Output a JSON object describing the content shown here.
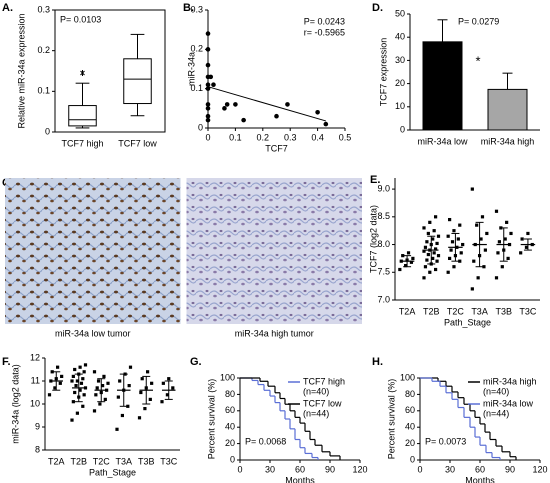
{
  "chart_data": [
    {
      "type": "box",
      "label": "A.",
      "ylabel": "Relative miR-34a expression",
      "categories": [
        "TCF7 high",
        "TCF7 low"
      ],
      "boxes": [
        {
          "min": 0.01,
          "q1": 0.015,
          "median": 0.03,
          "q3": 0.065,
          "max": 0.12,
          "outliers": [
            0.145
          ]
        },
        {
          "min": 0.04,
          "q1": 0.07,
          "median": 0.13,
          "q3": 0.18,
          "max": 0.24,
          "outliers": []
        }
      ],
      "ylim": [
        0,
        0.3
      ],
      "yticks": [
        0,
        0.1,
        0.2,
        0.3
      ],
      "color": "#ffffff",
      "annotations": [
        "P= 0.0103"
      ]
    },
    {
      "type": "scatter",
      "label": "B.",
      "ylabel": "miR-34a",
      "xlabel": "TCF7",
      "x": [
        0,
        0,
        0,
        0,
        0,
        0,
        0,
        0,
        0,
        0,
        0.01,
        0.02,
        0.06,
        0.07,
        0.1,
        0.13,
        0.25,
        0.29,
        0.4,
        0.43
      ],
      "values": [
        0.24,
        0.2,
        0.16,
        0.13,
        0.11,
        0.1,
        0.06,
        0.05,
        0.03,
        0.02,
        0.13,
        0.11,
        0.05,
        0.06,
        0.06,
        0.02,
        0.03,
        0.06,
        0.04,
        0.01
      ],
      "trend": {
        "x": [
          0,
          0.43
        ],
        "values": [
          0.105,
          0.018
        ]
      },
      "xlim": [
        0,
        0.5
      ],
      "xticks": [
        0,
        0.1,
        0.2,
        0.3,
        0.4,
        0.5
      ],
      "ylim": [
        0,
        0.3
      ],
      "yticks": [
        0,
        0.1,
        0.2,
        0.3
      ],
      "color": "#000000",
      "annotations": [
        "P= 0.0243",
        "r= -0.5965"
      ]
    },
    {
      "type": "bar",
      "label": "D.",
      "ylabel": "TCF7 expression",
      "categories": [
        "miR-34a low",
        "miR-34a high"
      ],
      "values": [
        38,
        17.5
      ],
      "errors": [
        9.5,
        7
      ],
      "colors": [
        "#000000",
        "#a6a6a6"
      ],
      "ylim": [
        0,
        50
      ],
      "yticks": [
        0,
        10,
        20,
        30,
        40,
        50
      ],
      "annotations": [
        "P= 0.0279",
        "*"
      ]
    },
    {
      "type": "image",
      "label": "C.",
      "captions": [
        "miR-34a low tumor",
        "miR-34a high tumor"
      ]
    },
    {
      "type": "dot",
      "label": "E.",
      "ylabel": "TCF7 (log2 data)",
      "xlabel": "Path_Stage",
      "categories": [
        "T2A",
        "T2B",
        "T2C",
        "T3A",
        "T3B",
        "T3C"
      ],
      "groups": [
        {
          "points": [
            7.55,
            7.62,
            7.68,
            7.7,
            7.72,
            7.75,
            7.8,
            7.85
          ],
          "mean": 7.7,
          "sd": 0.1
        },
        {
          "points": [
            7.4,
            7.5,
            7.55,
            7.6,
            7.65,
            7.7,
            7.72,
            7.75,
            7.8,
            7.82,
            7.85,
            7.88,
            7.9,
            7.92,
            7.95,
            8.0,
            8.02,
            8.05,
            8.1,
            8.15,
            8.2,
            8.25,
            8.3,
            8.4,
            8.5
          ],
          "mean": 7.9,
          "sd": 0.25
        },
        {
          "points": [
            7.5,
            7.6,
            7.7,
            7.75,
            7.8,
            7.85,
            7.9,
            7.95,
            8.0,
            8.05,
            8.1,
            8.15,
            8.25,
            8.35,
            8.45
          ],
          "mean": 7.95,
          "sd": 0.25
        },
        {
          "points": [
            7.2,
            7.4,
            7.6,
            7.7,
            7.8,
            7.9,
            8.0,
            8.1,
            8.2,
            8.35,
            8.5,
            9.0
          ],
          "mean": 8.0,
          "sd": 0.4
        },
        {
          "points": [
            7.4,
            7.6,
            7.75,
            7.85,
            7.9,
            8.0,
            8.05,
            8.1,
            8.2,
            8.3,
            8.4,
            8.6
          ],
          "mean": 8.0,
          "sd": 0.3
        },
        {
          "points": [
            7.85,
            7.95,
            8.0,
            8.1,
            8.2
          ],
          "mean": 8.0,
          "sd": 0.1
        }
      ],
      "ylim": [
        7,
        9.2
      ],
      "yticks": [
        {
          "value": 7,
          "label": "7.0"
        },
        {
          "value": 7.5,
          "label": "7.5"
        },
        {
          "value": 8,
          "label": "8.0"
        },
        {
          "value": 8.5,
          "label": "8.5"
        },
        {
          "value": 9,
          "label": "9.0"
        }
      ],
      "color": "#000000"
    },
    {
      "type": "dot",
      "label": "F.",
      "ylabel": "miR-34a (log2 data)",
      "xlabel": "Path_Stage",
      "categories": [
        "T2A",
        "T2B",
        "T2C",
        "T3A",
        "T3B",
        "T3C"
      ],
      "groups": [
        {
          "points": [
            10.4,
            10.7,
            10.9,
            11.0,
            11.1,
            11.2,
            11.4,
            11.6
          ],
          "mean": 11.0,
          "sd": 0.4
        },
        {
          "points": [
            9.3,
            9.6,
            9.9,
            10.1,
            10.3,
            10.4,
            10.5,
            10.6,
            10.7,
            10.8,
            10.9,
            11.0,
            11.0,
            11.1,
            11.2,
            11.3,
            11.4,
            11.5,
            11.6,
            11.7
          ],
          "mean": 10.7,
          "sd": 0.6
        },
        {
          "points": [
            9.7,
            10.0,
            10.2,
            10.4,
            10.5,
            10.6,
            10.7,
            10.8,
            10.9,
            11.0,
            11.2,
            11.4
          ],
          "mean": 10.6,
          "sd": 0.5
        },
        {
          "points": [
            8.9,
            9.5,
            9.9,
            10.3,
            10.6,
            10.8,
            11.0,
            11.3,
            11.6
          ],
          "mean": 10.6,
          "sd": 0.7
        },
        {
          "points": [
            9.4,
            9.8,
            10.2,
            10.5,
            10.7,
            10.9,
            11.1,
            11.4
          ],
          "mean": 10.6,
          "sd": 0.6
        },
        {
          "points": [
            10.1,
            10.4,
            10.7,
            10.9,
            11.1
          ],
          "mean": 10.6,
          "sd": 0.4
        }
      ],
      "ylim": [
        8,
        12
      ],
      "yticks": [
        8,
        9,
        10,
        11,
        12
      ],
      "color": "#000000"
    },
    {
      "type": "survival",
      "label": "G.",
      "ylabel": "Percent survival (%)",
      "xlabel": "Months",
      "series": [
        {
          "name": "TCF7 high",
          "n_label": "(n=40)",
          "color": "#5b6fd6",
          "x": [
            0,
            12,
            18,
            24,
            30,
            35,
            40,
            45,
            50,
            55,
            60,
            65,
            72,
            78
          ],
          "values": [
            100,
            97,
            92,
            85,
            78,
            70,
            60,
            50,
            38,
            25,
            15,
            8,
            3,
            0
          ]
        },
        {
          "name": "TCF7 low",
          "n_label": "(n=44)",
          "color": "#000000",
          "x": [
            0,
            20,
            28,
            35,
            40,
            45,
            50,
            55,
            60,
            65,
            70,
            75,
            82,
            90,
            100
          ],
          "values": [
            100,
            96,
            90,
            82,
            75,
            68,
            60,
            52,
            45,
            35,
            25,
            18,
            10,
            5,
            0
          ]
        }
      ],
      "xlim": [
        0,
        120
      ],
      "xticks": [
        0,
        30,
        60,
        90,
        120
      ],
      "ylim": [
        0,
        100
      ],
      "yticks": [
        0,
        20,
        40,
        60,
        80,
        100
      ],
      "annotations": [
        "P= 0.0068"
      ]
    },
    {
      "type": "survival",
      "label": "H.",
      "ylabel": "Percent survival (%)",
      "xlabel": "Months",
      "series": [
        {
          "name": "miR-34a high",
          "n_label": "(n=40)",
          "color": "#000000",
          "x": [
            0,
            18,
            26,
            32,
            38,
            44,
            50,
            55,
            60,
            65,
            70,
            76,
            82,
            90,
            96
          ],
          "values": [
            100,
            96,
            90,
            83,
            76,
            68,
            60,
            52,
            44,
            34,
            25,
            17,
            10,
            4,
            0
          ]
        },
        {
          "name": "miR-34a low",
          "n_label": "(n=44)",
          "color": "#5b6fd6",
          "x": [
            0,
            12,
            20,
            26,
            32,
            38,
            44,
            50,
            55,
            60,
            66,
            72,
            80
          ],
          "values": [
            100,
            96,
            90,
            82,
            74,
            64,
            52,
            40,
            28,
            18,
            9,
            3,
            0
          ]
        }
      ],
      "xlim": [
        0,
        120
      ],
      "xticks": [
        0,
        30,
        60,
        90,
        120
      ],
      "ylim": [
        0,
        100
      ],
      "yticks": [
        0,
        20,
        40,
        60,
        80,
        100
      ],
      "annotations": [
        "P= 0.0073"
      ]
    }
  ]
}
